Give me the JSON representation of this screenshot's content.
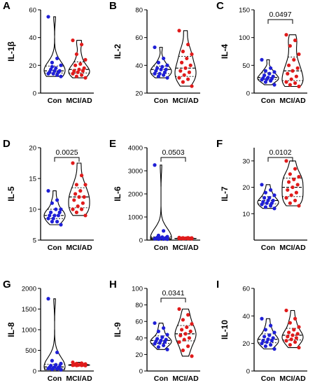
{
  "colors": {
    "con": "#1f1fd6",
    "mci": "#e01b1b",
    "axis": "#000000"
  },
  "chart_data": [
    {
      "letter": "A",
      "type": "violin",
      "ylabel": "IL-1β",
      "ylim": [
        0,
        60
      ],
      "yticks": [
        "0",
        "20",
        "40",
        "60"
      ],
      "categories": [
        "Con",
        "MCI/AD"
      ],
      "pvalue": "",
      "series": [
        {
          "values": [
            55,
            25,
            22,
            20,
            18,
            17,
            16,
            16,
            15,
            15,
            14,
            14,
            13,
            19,
            12
          ]
        },
        {
          "values": [
            38,
            35,
            28,
            24,
            21,
            20,
            18,
            17,
            16,
            16,
            15,
            14,
            13,
            12,
            11
          ]
        }
      ]
    },
    {
      "letter": "B",
      "type": "violin",
      "ylabel": "IL-2",
      "ylim": [
        20,
        80
      ],
      "yticks": [
        "20",
        "40",
        "60",
        "80"
      ],
      "categories": [
        "Con",
        "MCI/AD"
      ],
      "pvalue": "",
      "series": [
        {
          "values": [
            53,
            45,
            42,
            40,
            39,
            38,
            37,
            37,
            36,
            35,
            34,
            34,
            33,
            32,
            31
          ]
        },
        {
          "values": [
            65,
            55,
            50,
            48,
            45,
            42,
            40,
            38,
            36,
            35,
            33,
            31,
            30,
            28,
            25
          ]
        }
      ]
    },
    {
      "letter": "C",
      "type": "violin",
      "ylabel": "IL-4",
      "ylim": [
        0,
        150
      ],
      "yticks": [
        "0",
        "50",
        "100",
        "150"
      ],
      "categories": [
        "Con",
        "MCI/AD"
      ],
      "pvalue": "0.0497",
      "series": [
        {
          "values": [
            60,
            45,
            40,
            38,
            35,
            32,
            30,
            28,
            27,
            26,
            25,
            24,
            22,
            20,
            15
          ]
        },
        {
          "values": [
            105,
            95,
            85,
            70,
            60,
            50,
            45,
            40,
            35,
            30,
            25,
            20,
            18,
            15,
            12
          ]
        }
      ]
    },
    {
      "letter": "D",
      "type": "violin",
      "ylabel": "IL-5",
      "ylim": [
        5,
        20
      ],
      "yticks": [
        "5",
        "10",
        "15",
        "20"
      ],
      "categories": [
        "Con",
        "MCI/AD"
      ],
      "pvalue": "0.0025",
      "series": [
        {
          "values": [
            13,
            11.5,
            11,
            10,
            10,
            9.5,
            9.5,
            9,
            9,
            9,
            8.5,
            8.5,
            8,
            8,
            7.5
          ]
        },
        {
          "values": [
            17.5,
            15.5,
            14,
            14,
            13,
            12.5,
            12,
            12,
            11.5,
            11,
            10.5,
            10,
            10,
            9.5,
            9
          ]
        }
      ]
    },
    {
      "letter": "E",
      "type": "violin",
      "ylabel": "IL-6",
      "ylim": [
        0,
        4000
      ],
      "yticks": [
        "0",
        "1000",
        "2000",
        "3000",
        "4000"
      ],
      "categories": [
        "Con",
        "MCI/AD"
      ],
      "pvalue": "0.0503",
      "series": [
        {
          "values": [
            3250,
            400,
            200,
            150,
            130,
            110,
            100,
            90,
            80,
            70,
            60,
            55,
            50,
            45,
            40
          ]
        },
        {
          "values": [
            110,
            100,
            95,
            90,
            85,
            80,
            78,
            75,
            72,
            70,
            68,
            66,
            64,
            62,
            60
          ]
        }
      ]
    },
    {
      "letter": "F",
      "type": "violin",
      "ylabel": "IL-7",
      "ylim": [
        0,
        35
      ],
      "yticks": [
        "10",
        "20",
        "30"
      ],
      "categories": [
        "Con",
        "MCI/AD"
      ],
      "pvalue": "0.0102",
      "series": [
        {
          "values": [
            21,
            19,
            18,
            17,
            16,
            16,
            15,
            15,
            14.5,
            14,
            14,
            13.5,
            13,
            12.5,
            12
          ]
        },
        {
          "values": [
            30,
            27,
            25,
            24,
            23,
            22,
            21,
            20,
            19,
            18,
            17,
            16,
            15,
            14,
            13
          ]
        }
      ]
    },
    {
      "letter": "G",
      "type": "violin",
      "ylabel": "IL-8",
      "ylim": [
        0,
        2000
      ],
      "yticks": [
        "0",
        "500",
        "1000",
        "1500",
        "2000"
      ],
      "categories": [
        "Con",
        "MCI/AD"
      ],
      "pvalue": "",
      "series": [
        {
          "values": [
            1750,
            450,
            250,
            180,
            150,
            130,
            110,
            100,
            90,
            80,
            70,
            60,
            50,
            40,
            30
          ]
        },
        {
          "values": [
            210,
            190,
            180,
            170,
            165,
            160,
            155,
            150,
            148,
            145,
            142,
            140,
            138,
            135,
            130
          ]
        }
      ]
    },
    {
      "letter": "H",
      "type": "violin",
      "ylabel": "IL-9",
      "ylim": [
        0,
        100
      ],
      "yticks": [
        "0",
        "20",
        "40",
        "60",
        "80",
        "100"
      ],
      "categories": [
        "Con",
        "MCI/AD"
      ],
      "pvalue": "0.0341",
      "series": [
        {
          "values": [
            58,
            52,
            48,
            44,
            41,
            39,
            38,
            37,
            36,
            35,
            34,
            33,
            31,
            29,
            26
          ]
        },
        {
          "values": [
            75,
            68,
            62,
            57,
            53,
            50,
            48,
            45,
            43,
            40,
            38,
            35,
            30,
            25,
            18
          ]
        }
      ]
    },
    {
      "letter": "I",
      "type": "violin",
      "ylabel": "IL-10",
      "ylim": [
        0,
        60
      ],
      "yticks": [
        "0",
        "20",
        "40",
        "60"
      ],
      "categories": [
        "Con",
        "MCI/AD"
      ],
      "pvalue": "",
      "series": [
        {
          "values": [
            38,
            33,
            30,
            28,
            26,
            25,
            24,
            23,
            22,
            22,
            21,
            20,
            19,
            18,
            16
          ]
        },
        {
          "values": [
            44,
            38,
            35,
            32,
            30,
            28,
            27,
            26,
            25,
            24,
            23,
            22,
            21,
            19,
            17
          ]
        }
      ]
    }
  ]
}
